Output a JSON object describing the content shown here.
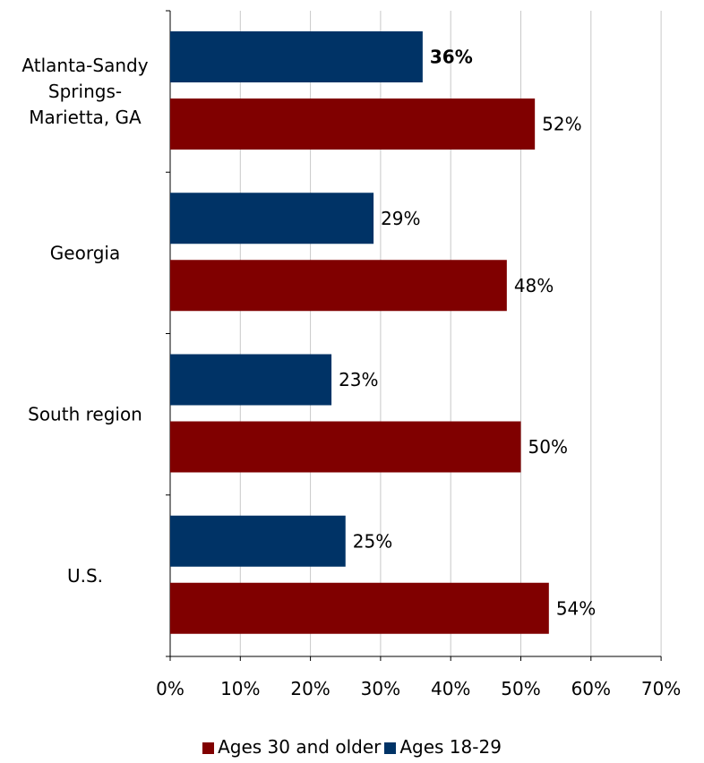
{
  "chart_data": {
    "type": "bar",
    "orientation": "horizontal",
    "categories": [
      "Atlanta-Sandy Springs-Marietta, GA",
      "Georgia",
      "South region",
      "U.S."
    ],
    "category_lines": [
      [
        "Atlanta-Sandy",
        "Springs-",
        "Marietta, GA"
      ],
      [
        "Georgia"
      ],
      [
        "South region"
      ],
      [
        "U.S."
      ]
    ],
    "series": [
      {
        "name": "Ages 18-29",
        "color": "#003366",
        "values": [
          36,
          29,
          23,
          25
        ],
        "labels": [
          "36%",
          "29%",
          "23%",
          "25%"
        ],
        "bold_label": [
          true,
          false,
          false,
          false
        ]
      },
      {
        "name": "Ages 30 and older",
        "color": "#800000",
        "values": [
          52,
          48,
          50,
          54
        ],
        "labels": [
          "52%",
          "48%",
          "50%",
          "54%"
        ],
        "bold_label": [
          false,
          false,
          false,
          false
        ]
      }
    ],
    "xlim": [
      0,
      70
    ],
    "xticks": [
      0,
      10,
      20,
      30,
      40,
      50,
      60,
      70
    ],
    "xtick_labels": [
      "0%",
      "10%",
      "20%",
      "30%",
      "40%",
      "50%",
      "60%",
      "70%"
    ],
    "grid": "vertical",
    "legend_position": "bottom",
    "legend_order": [
      "Ages 30 and older",
      "Ages 18-29"
    ]
  }
}
